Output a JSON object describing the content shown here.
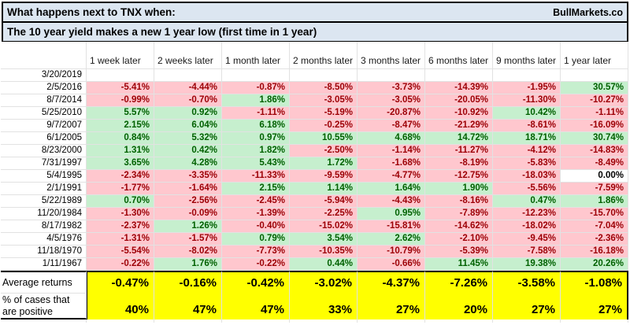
{
  "header": {
    "title": "What happens next to TNX when:",
    "subtitle": "The 10 year yield makes a new 1 year low (first time in 1 year)",
    "brand": "BullMarkets.co"
  },
  "colors": {
    "title_bg": "#DCE6F1",
    "negative_bg": "#FFC7CE",
    "negative_text": "#9C0006",
    "positive_bg": "#C6EFCE",
    "positive_text": "#006100",
    "summary_bg": "#FFFF00",
    "grid_line": "#E2E2E2"
  },
  "table": {
    "columns": [
      "1 week later",
      "2 weeks later",
      "1 month later",
      "2 months later",
      "3 months later",
      "6 months later",
      "9 months later",
      "1 year later"
    ],
    "rows": [
      {
        "date": "3/20/2019",
        "values": [
          null,
          null,
          null,
          null,
          null,
          null,
          null,
          null
        ]
      },
      {
        "date": "2/5/2016",
        "values": [
          "-5.41%",
          "-4.44%",
          "-0.87%",
          "-8.50%",
          "-3.73%",
          "-14.39%",
          "-1.95%",
          "30.57%"
        ]
      },
      {
        "date": "8/7/2014",
        "values": [
          "-0.99%",
          "-0.70%",
          "1.86%",
          "-3.05%",
          "-3.05%",
          "-20.05%",
          "-11.30%",
          "-10.27%"
        ]
      },
      {
        "date": "5/25/2010",
        "values": [
          "5.57%",
          "0.92%",
          "-1.11%",
          "-5.19%",
          "-20.87%",
          "-10.92%",
          "10.42%",
          "-1.11%"
        ]
      },
      {
        "date": "9/7/2007",
        "values": [
          "2.15%",
          "6.04%",
          "6.18%",
          "-0.25%",
          "-8.47%",
          "-21.29%",
          "-8.61%",
          "-16.09%"
        ]
      },
      {
        "date": "6/1/2005",
        "values": [
          "0.84%",
          "5.32%",
          "0.97%",
          "10.55%",
          "4.68%",
          "14.72%",
          "18.71%",
          "30.74%"
        ]
      },
      {
        "date": "8/23/2000",
        "values": [
          "1.31%",
          "0.42%",
          "1.82%",
          "-2.50%",
          "-1.14%",
          "-11.27%",
          "-4.12%",
          "-14.83%"
        ]
      },
      {
        "date": "7/31/1997",
        "values": [
          "3.65%",
          "4.28%",
          "5.43%",
          "1.72%",
          "-1.68%",
          "-8.19%",
          "-5.83%",
          "-8.49%"
        ]
      },
      {
        "date": "5/4/1995",
        "values": [
          "-2.34%",
          "-3.35%",
          "-11.33%",
          "-9.59%",
          "-4.77%",
          "-12.75%",
          "-18.03%",
          "0.00%"
        ]
      },
      {
        "date": "2/1/1991",
        "values": [
          "-1.77%",
          "-1.64%",
          "2.15%",
          "1.14%",
          "1.64%",
          "1.90%",
          "-5.56%",
          "-7.59%"
        ]
      },
      {
        "date": "5/22/1989",
        "values": [
          "0.70%",
          "-2.56%",
          "-2.45%",
          "-5.94%",
          "-4.43%",
          "-8.16%",
          "0.47%",
          "1.86%"
        ]
      },
      {
        "date": "11/20/1984",
        "values": [
          "-1.30%",
          "-0.09%",
          "-1.39%",
          "-2.25%",
          "0.95%",
          "-7.89%",
          "-12.23%",
          "-15.70%"
        ]
      },
      {
        "date": "8/17/1982",
        "values": [
          "-2.37%",
          "1.26%",
          "-0.40%",
          "-15.02%",
          "-15.81%",
          "-14.62%",
          "-18.02%",
          "-7.04%"
        ]
      },
      {
        "date": "4/5/1976",
        "values": [
          "-1.31%",
          "-1.57%",
          "0.79%",
          "3.54%",
          "2.62%",
          "-2.10%",
          "-9.45%",
          "-2.36%"
        ]
      },
      {
        "date": "11/18/1970",
        "values": [
          "-5.54%",
          "-8.02%",
          "-7.73%",
          "-10.35%",
          "-10.79%",
          "-5.39%",
          "-7.58%",
          "-16.18%"
        ]
      },
      {
        "date": "1/11/1967",
        "values": [
          "-0.22%",
          "1.76%",
          "-0.22%",
          "0.44%",
          "-0.66%",
          "11.45%",
          "19.38%",
          "20.26%"
        ]
      }
    ],
    "summary": {
      "average": {
        "label": "Average returns",
        "values": [
          "-0.47%",
          "-0.16%",
          "-0.42%",
          "-3.02%",
          "-4.37%",
          "-7.26%",
          "-3.58%",
          "-1.08%"
        ]
      },
      "percent_positive": {
        "label": "% of cases that are positive",
        "values": [
          "40%",
          "47%",
          "47%",
          "33%",
          "27%",
          "20%",
          "27%",
          "27%"
        ]
      }
    }
  }
}
